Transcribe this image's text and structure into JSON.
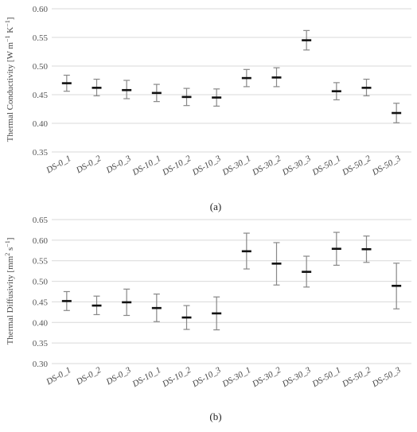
{
  "chart_data": [
    {
      "type": "scatter",
      "categories": [
        "DS-0_1",
        "DS-0_2",
        "DS-0_3",
        "DS-10_1",
        "DS-10_2",
        "DS-10_3",
        "DS-30_1",
        "DS-30_2",
        "DS-30_3",
        "DS-50_1",
        "DS-50_2",
        "DS-50_3"
      ],
      "values": [
        0.47,
        0.462,
        0.458,
        0.453,
        0.446,
        0.445,
        0.479,
        0.48,
        0.545,
        0.456,
        0.462,
        0.418
      ],
      "err_low": [
        0.456,
        0.448,
        0.443,
        0.438,
        0.431,
        0.43,
        0.464,
        0.464,
        0.528,
        0.441,
        0.448,
        0.401
      ],
      "err_high": [
        0.484,
        0.477,
        0.475,
        0.468,
        0.461,
        0.46,
        0.494,
        0.497,
        0.562,
        0.471,
        0.477,
        0.435
      ],
      "ylabel_main": "Thermal Conductivity [W m",
      "ylabel_sup1": "−1",
      "ylabel_mid": " K",
      "ylabel_sup2": "−1",
      "ylabel_end": "]",
      "ylim": [
        0.35,
        0.6
      ],
      "yticks": [
        "0.35",
        "0.40",
        "0.45",
        "0.50",
        "0.55",
        "0.60"
      ],
      "grid": true,
      "caption": "(a)",
      "caption_letter": "a"
    },
    {
      "type": "scatter",
      "categories": [
        "DS-0_1",
        "DS-0_2",
        "DS-0_3",
        "DS-10_1",
        "DS-10_2",
        "DS-10_3",
        "DS-30_1",
        "DS-30_2",
        "DS-30_3",
        "DS-50_1",
        "DS-50_2",
        "DS-50_3"
      ],
      "values": [
        0.452,
        0.441,
        0.449,
        0.435,
        0.412,
        0.422,
        0.573,
        0.543,
        0.523,
        0.579,
        0.578,
        0.489
      ],
      "err_low": [
        0.429,
        0.419,
        0.417,
        0.402,
        0.383,
        0.382,
        0.53,
        0.491,
        0.486,
        0.539,
        0.546,
        0.433
      ],
      "err_high": [
        0.475,
        0.464,
        0.481,
        0.469,
        0.441,
        0.462,
        0.617,
        0.594,
        0.561,
        0.619,
        0.61,
        0.544
      ],
      "ylabel_main": "Thermal Diffusivity [mm",
      "ylabel_sup1": "2",
      "ylabel_mid": " s",
      "ylabel_sup2": "−1",
      "ylabel_end": "]",
      "ylim": [
        0.3,
        0.65
      ],
      "yticks": [
        "0.30",
        "0.35",
        "0.40",
        "0.45",
        "0.50",
        "0.55",
        "0.60",
        "0.65"
      ],
      "grid": true,
      "caption": "(b)",
      "caption_letter": "b"
    }
  ]
}
